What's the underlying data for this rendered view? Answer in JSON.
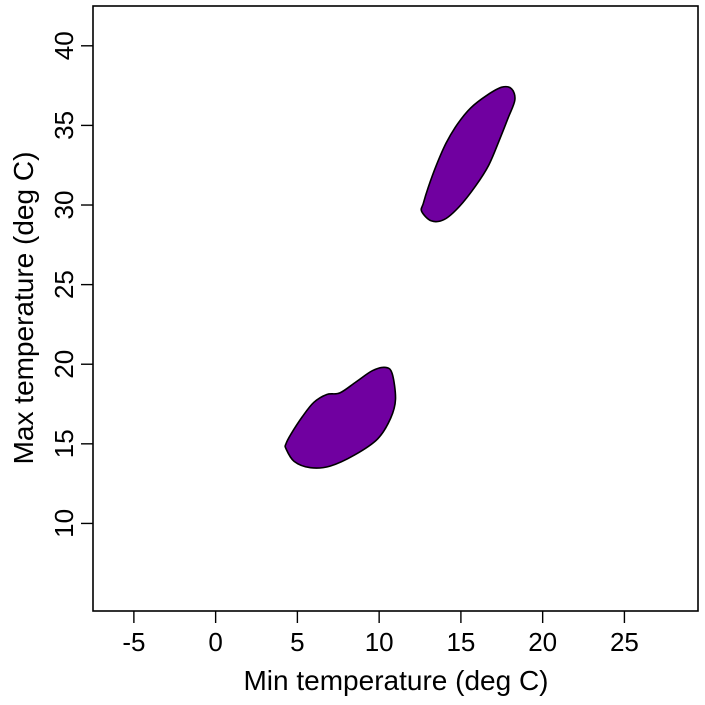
{
  "chart_data": {
    "type": "area",
    "title": "",
    "xlabel": "Min temperature (deg C)",
    "ylabel": "Max temperature (deg C)",
    "xlim": [
      -7.5,
      29.5
    ],
    "ylim": [
      4.5,
      42.5
    ],
    "x_ticks": [
      -5,
      0,
      5,
      10,
      15,
      20,
      25
    ],
    "y_ticks": [
      10,
      15,
      20,
      25,
      30,
      35,
      40
    ],
    "grid": false,
    "fill_color": "#7000a0",
    "outline_color": "#000000",
    "regions": [
      {
        "id": "lower",
        "points": [
          [
            4.3,
            14.7
          ],
          [
            4.8,
            13.9
          ],
          [
            5.8,
            13.5
          ],
          [
            7.0,
            13.6
          ],
          [
            8.5,
            14.3
          ],
          [
            9.9,
            15.3
          ],
          [
            10.7,
            16.6
          ],
          [
            11.0,
            17.8
          ],
          [
            10.8,
            19.4
          ],
          [
            10.4,
            19.8
          ],
          [
            9.6,
            19.6
          ],
          [
            8.6,
            18.9
          ],
          [
            7.6,
            18.2
          ],
          [
            6.8,
            18.1
          ],
          [
            6.0,
            17.6
          ],
          [
            5.3,
            16.7
          ],
          [
            4.6,
            15.6
          ],
          [
            4.3,
            15.0
          ]
        ]
      },
      {
        "id": "upper",
        "points": [
          [
            13.2,
            29.0
          ],
          [
            14.0,
            29.1
          ],
          [
            14.9,
            29.9
          ],
          [
            15.9,
            31.2
          ],
          [
            16.7,
            32.5
          ],
          [
            17.4,
            34.2
          ],
          [
            17.9,
            35.5
          ],
          [
            18.3,
            36.6
          ],
          [
            18.1,
            37.3
          ],
          [
            17.5,
            37.4
          ],
          [
            16.6,
            36.9
          ],
          [
            15.6,
            36.1
          ],
          [
            14.8,
            35.1
          ],
          [
            14.1,
            33.9
          ],
          [
            13.5,
            32.5
          ],
          [
            13.0,
            31.1
          ],
          [
            12.7,
            30.1
          ],
          [
            12.6,
            29.6
          ]
        ]
      }
    ]
  }
}
